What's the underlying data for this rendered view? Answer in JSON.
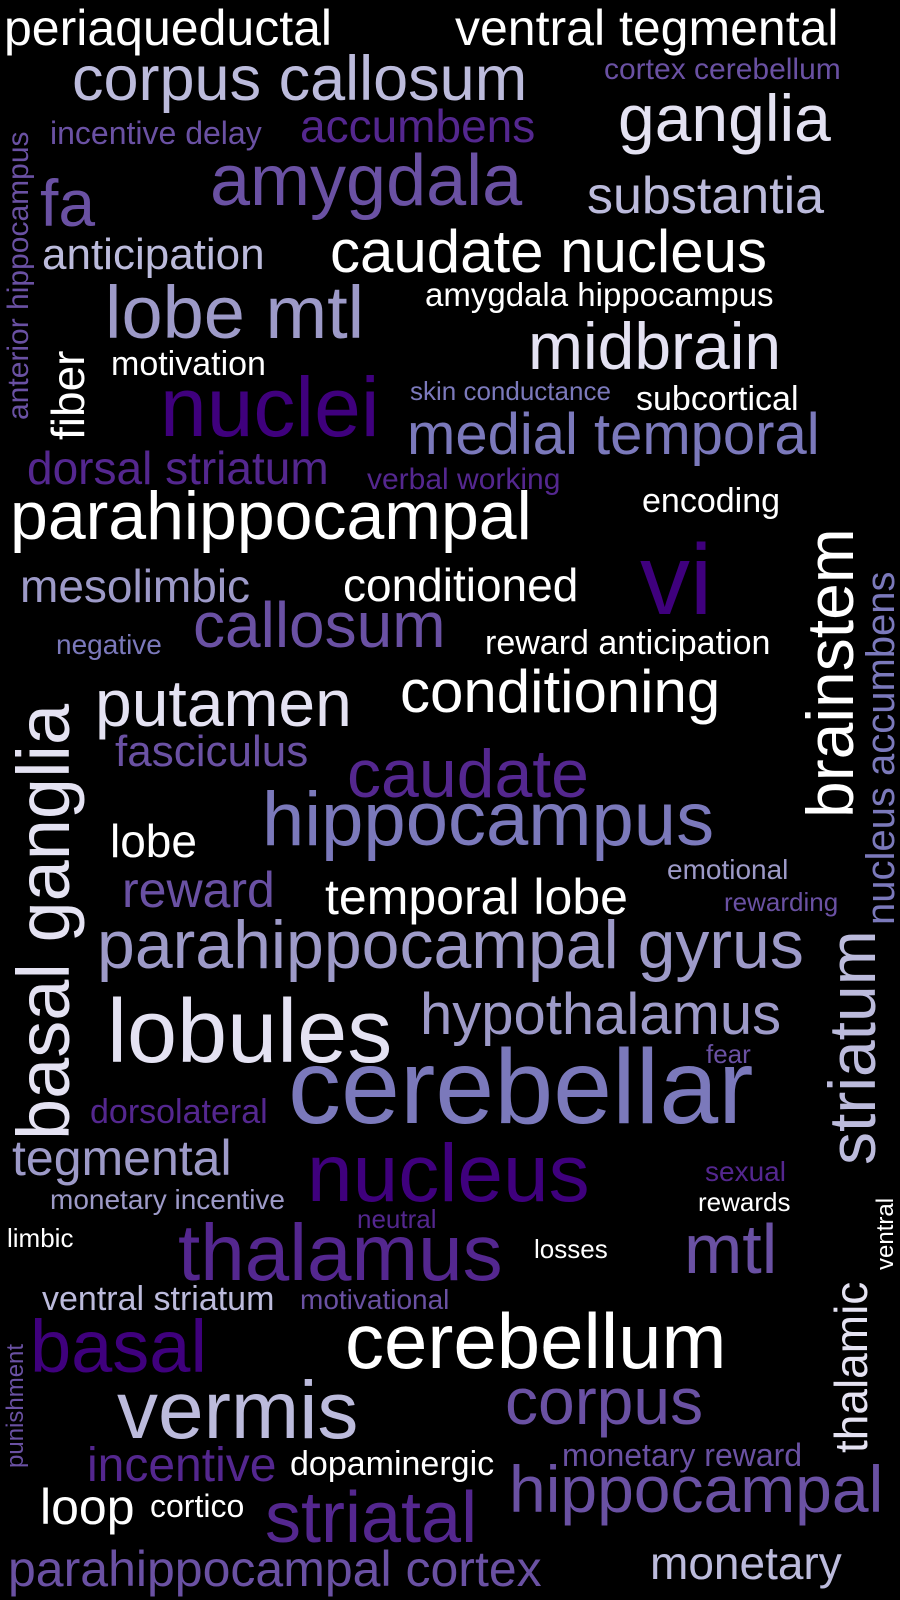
{
  "palette": {
    "background": "#000000",
    "white": "#ffffff",
    "pale": "#e4e2f2",
    "light": "#bcbbdc",
    "mid": "#9d9ac8",
    "periwinkle": "#7b79bb",
    "purple": "#6a51a3",
    "violet": "#54278f",
    "deep": "#3f007d"
  },
  "words": [
    "periaqueductal",
    "ventral tegmental",
    "corpus callosum",
    "cortex cerebellum",
    "ganglia",
    "incentive delay",
    "accumbens",
    "anterior hippocampus",
    "fa",
    "amygdala",
    "substantia",
    "anticipation",
    "caudate nucleus",
    "lobe mtl",
    "amygdala hippocampus",
    "fiber",
    "midbrain",
    "motivation",
    "nuclei",
    "skin conductance",
    "subcortical",
    "medial temporal",
    "dorsal striatum",
    "verbal working",
    "encoding",
    "parahippocampal",
    "brainstem",
    "nucleus accumbens",
    "mesolimbic",
    "conditioned",
    "vi",
    "negative",
    "callosum",
    "reward anticipation",
    "putamen",
    "conditioning",
    "basal ganglia",
    "fasciculus",
    "caudate",
    "hippocampus",
    "lobe",
    "emotional",
    "reward",
    "temporal lobe",
    "rewarding",
    "parahippocampal gyrus",
    "lobules",
    "hypothalamus",
    "striatum",
    "fear",
    "dorsolateral",
    "cerebellar",
    "tegmental",
    "nucleus",
    "sexual",
    "monetary incentive",
    "rewards",
    "ventral",
    "neutral",
    "limbic",
    "thalamus",
    "losses",
    "mtl",
    "thalamic",
    "ventral striatum",
    "motivational",
    "basal",
    "cerebellum",
    "punishment",
    "vermis",
    "corpus",
    "incentive",
    "dopaminergic",
    "monetary reward",
    "loop",
    "cortico",
    "striatal",
    "hippocampal",
    "parahippocampal cortex",
    "monetary"
  ]
}
